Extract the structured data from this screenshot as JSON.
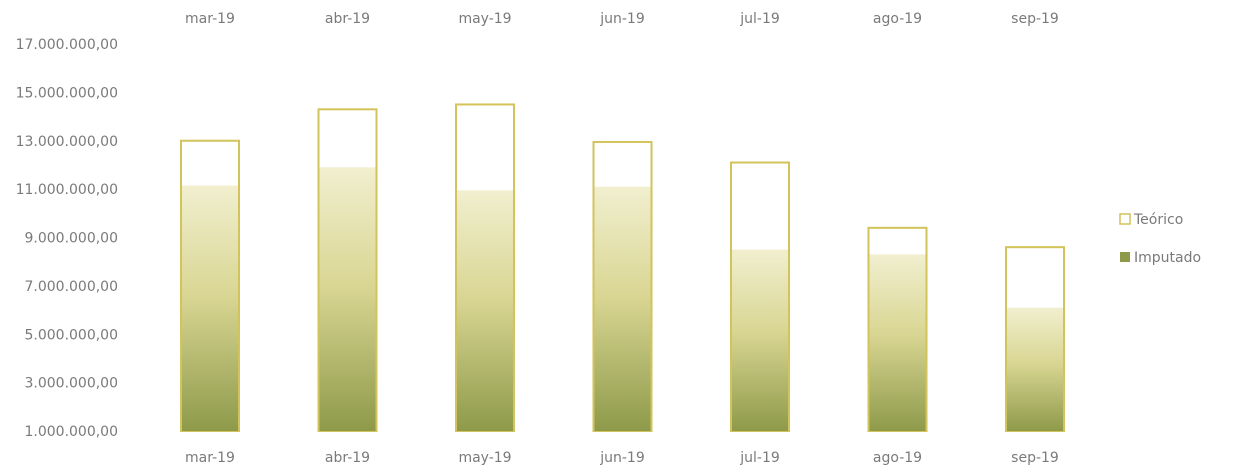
{
  "chart_data": {
    "type": "bar",
    "categories": [
      "mar-19",
      "abr-19",
      "may-19",
      "jun-19",
      "jul-19",
      "ago-19",
      "sep-19"
    ],
    "series": [
      {
        "name": "Teórico",
        "values": [
          13000000,
          14300000,
          14500000,
          12950000,
          12100000,
          9400000,
          8600000
        ]
      },
      {
        "name": "Imputado",
        "values": [
          11150000,
          11900000,
          10950000,
          11100000,
          8500000,
          8300000,
          6100000
        ]
      }
    ],
    "y_ticks": [
      "17.000.000,00",
      "15.000.000,00",
      "13.000.000,00",
      "11.000.000,00",
      "9.000.000,00",
      "7.000.000,00",
      "5.000.000,00",
      "3.000.000,00",
      "1.000.000,00"
    ],
    "ylim": [
      1000000,
      17000000
    ],
    "grid": false,
    "legend": "right",
    "colors": {
      "teorico_border": "#d2c35a",
      "teorico_fill": "#ffffff",
      "imputado_top": "#f1efcf",
      "imputado_mid": "#d9d693",
      "imputado_bottom": "#8e9a4a",
      "text": "#7a7a7a"
    }
  }
}
